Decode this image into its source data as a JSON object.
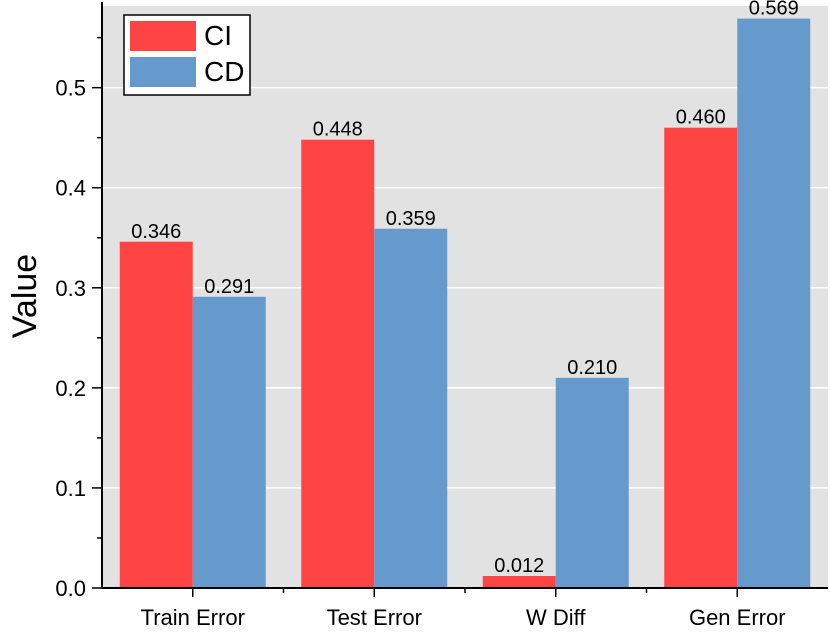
{
  "chart_data": {
    "type": "bar",
    "title": "",
    "xlabel": "",
    "ylabel": "Value",
    "categories": [
      "Train Error",
      "Test Error",
      "W Diff",
      "Gen Error"
    ],
    "series": [
      {
        "name": "CI",
        "color": "#ff4444",
        "values": [
          0.346,
          0.448,
          0.012,
          0.46
        ],
        "labels": [
          "0.346",
          "0.448",
          "0.012",
          "0.460"
        ]
      },
      {
        "name": "CD",
        "color": "#6699cc",
        "values": [
          0.291,
          0.359,
          0.21,
          0.569
        ],
        "labels": [
          "0.291",
          "0.359",
          "0.210",
          "0.569"
        ]
      }
    ],
    "ylim": [
      0,
      0.5816
    ],
    "yticks": [
      0.0,
      0.1,
      0.2,
      0.3,
      0.4,
      0.5
    ],
    "ytick_labels": [
      "0.0",
      "0.1",
      "0.2",
      "0.3",
      "0.4",
      "0.5"
    ],
    "grid": true,
    "legend_position": "top-left",
    "plot_background": "#e2e2e2",
    "grid_color": "#ffffff"
  }
}
